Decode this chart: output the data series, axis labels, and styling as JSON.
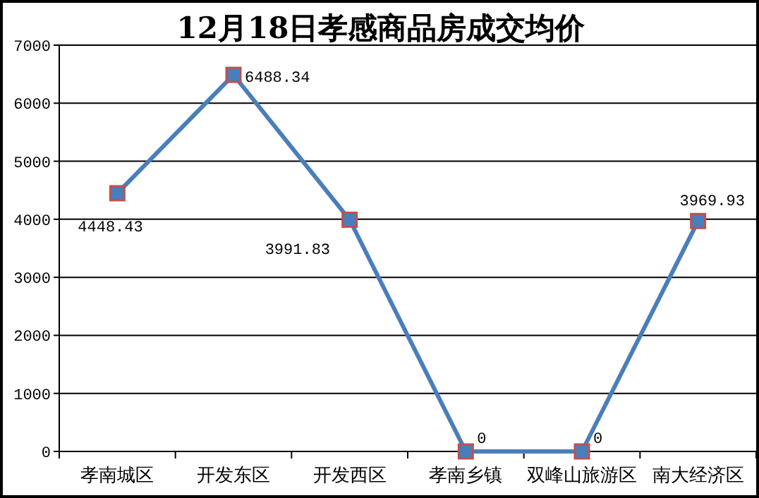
{
  "chart_data": {
    "type": "line",
    "title": "12月18日孝感商品房成交均价",
    "categories": [
      "孝南城区",
      "开发东区",
      "开发西区",
      "孝南乡镇",
      "双峰山旅游区",
      "南大经济区"
    ],
    "series": [
      {
        "color": "#4a7ebb",
        "values": [
          4448.43,
          6488.34,
          3991.83,
          0,
          0,
          3969.93
        ]
      }
    ],
    "ylim": [
      0,
      7000
    ],
    "yticks": [
      0,
      1000,
      2000,
      3000,
      4000,
      5000,
      6000,
      7000
    ],
    "grid": "y",
    "marker": "square",
    "line_style": "solid",
    "data_labels": true
  }
}
